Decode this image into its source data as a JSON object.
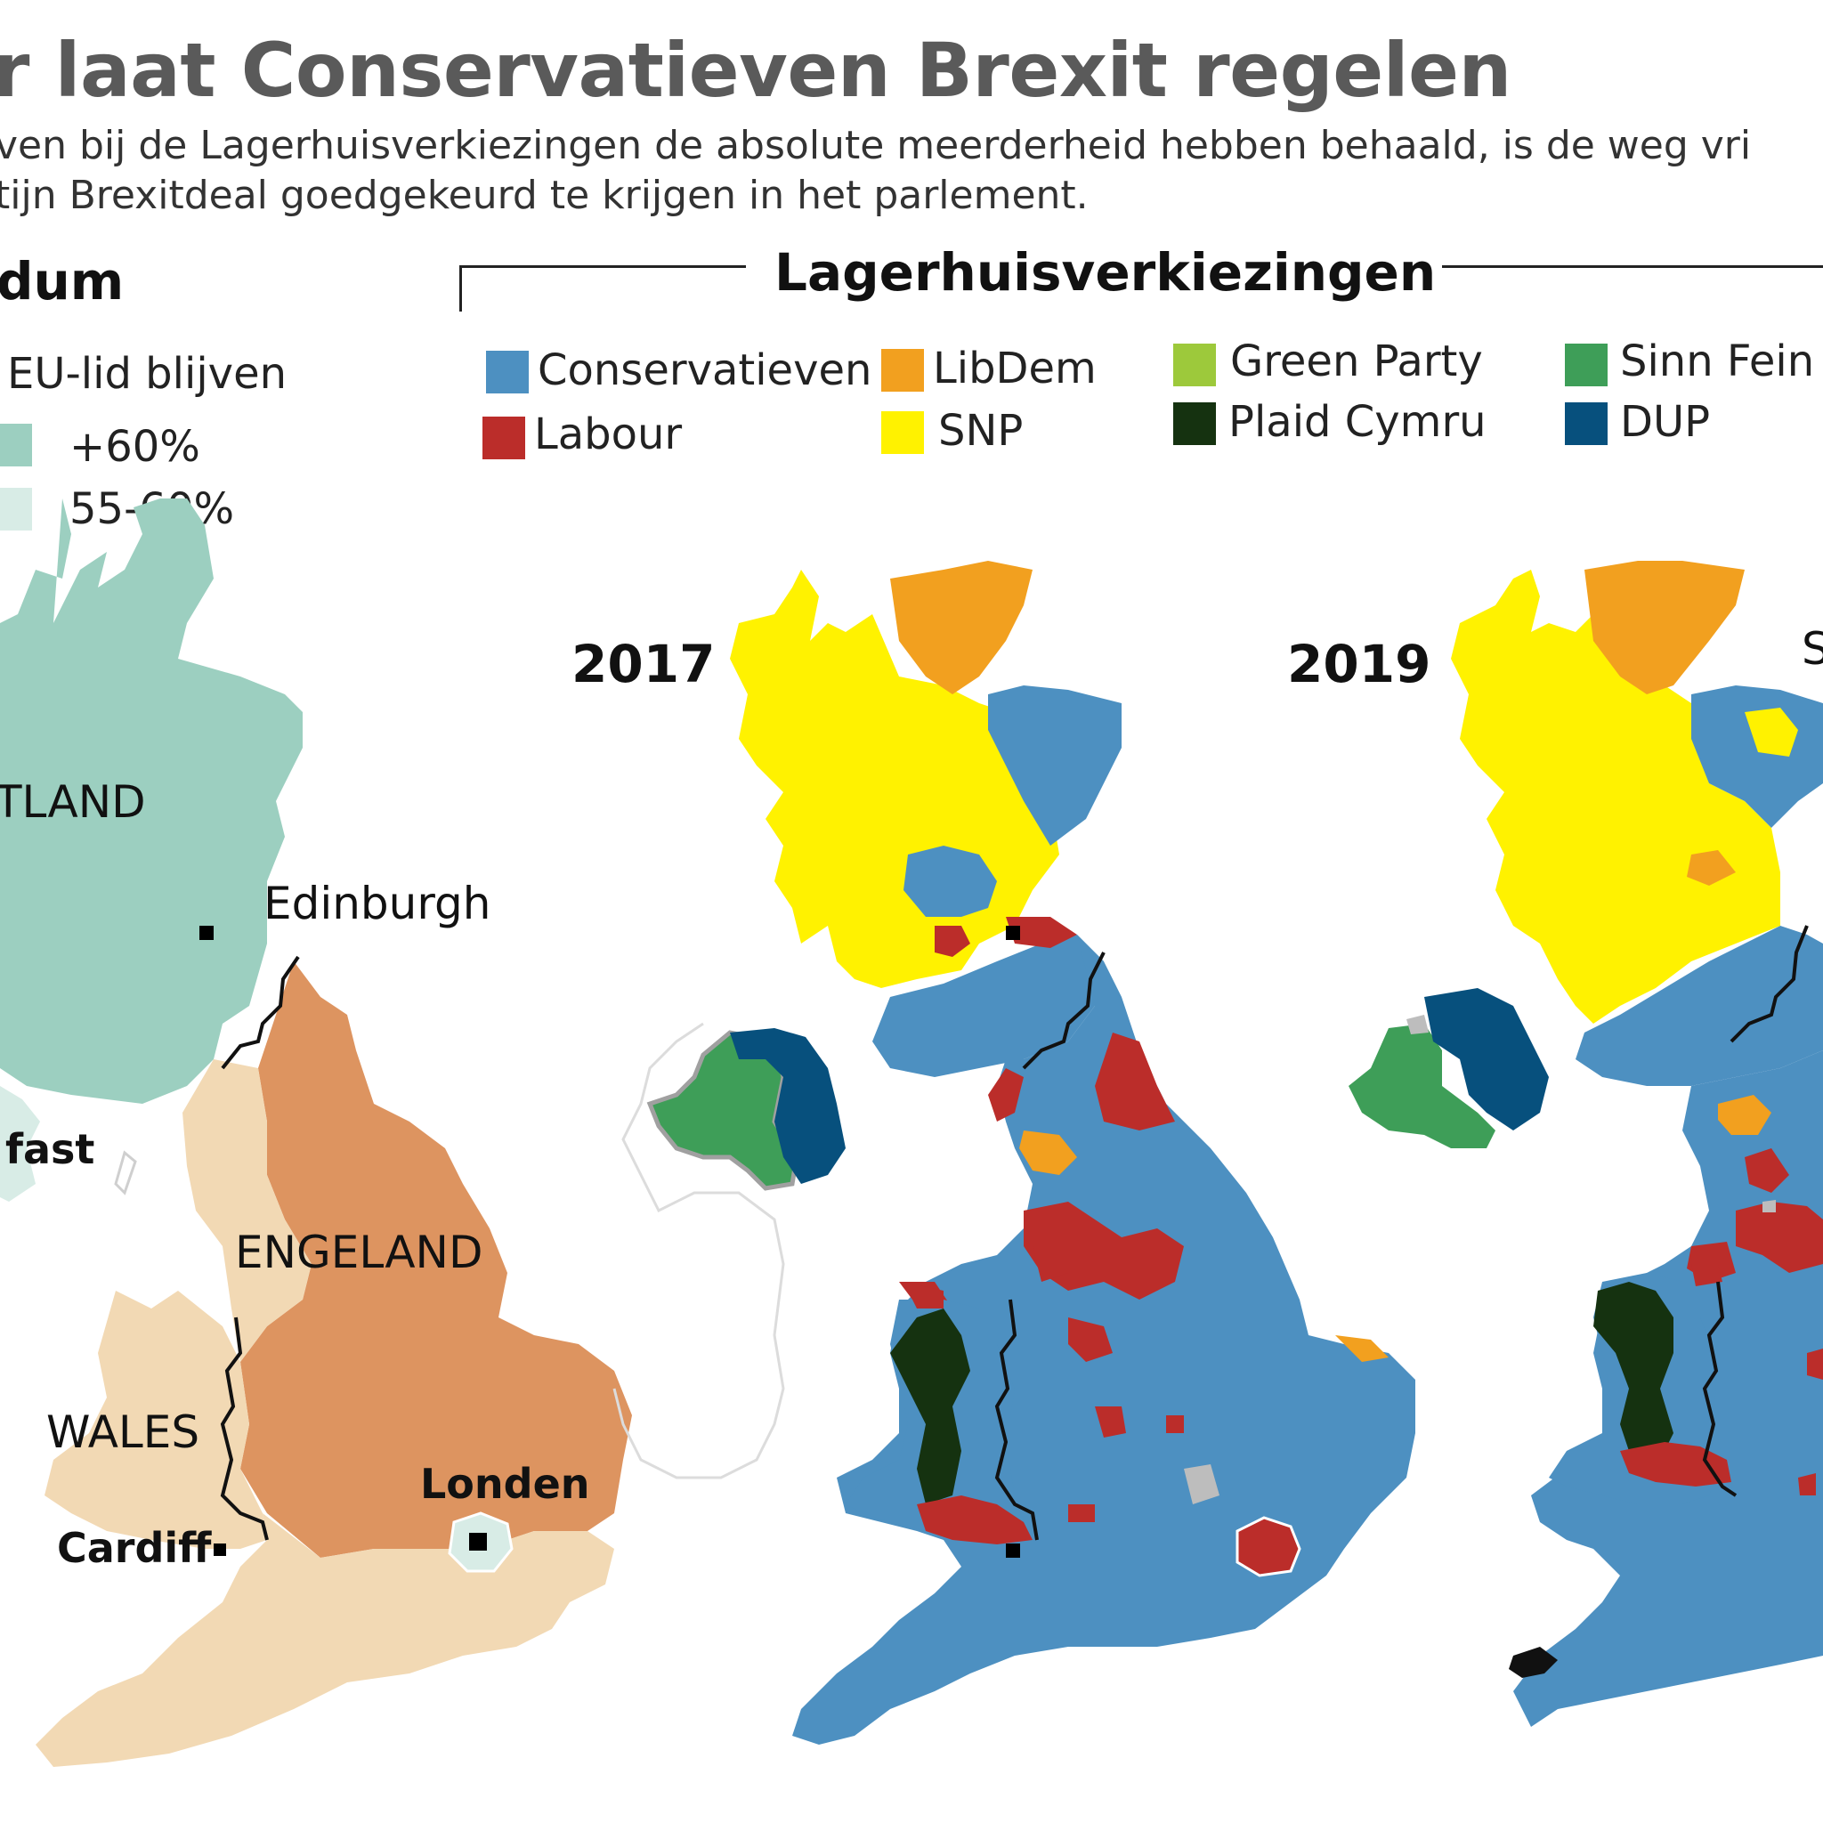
{
  "title": "r laat Conservatieven Brexit regelen",
  "subtitle_line1": "ven bij de Lagerhuisverkiezingen de absolute meerderheid hebben behaald, is de weg vri",
  "subtitle_line2": "tijn Brexitdeal goedgekeurd te krijgen in het parlement.",
  "referendum": {
    "heading": "dum",
    "legend_title": "EU-lid blijven",
    "legend": [
      {
        "label": "+60%",
        "color": "#9ccfc0"
      },
      {
        "label": "55-60%",
        "color": "#d8ece6"
      }
    ],
    "leave_colors": {
      "strong": "#dd9460",
      "light": "#f2d9b4"
    },
    "labels": {
      "scotland": "TLAND",
      "edinburgh": "Edinburgh",
      "belfast": "fast",
      "england": "ENGELAND",
      "wales": "WALES",
      "london": "Londen",
      "cardiff": "Cardiff"
    }
  },
  "elections": {
    "heading": "Lagerhuisverkiezingen",
    "legend": [
      {
        "label": "Conservatieven",
        "color": "#4d90c1"
      },
      {
        "label": "Labour",
        "color": "#bb2d2a"
      },
      {
        "label": "LibDem",
        "color": "#f2a01f"
      },
      {
        "label": "SNP",
        "color": "#fff200"
      },
      {
        "label": "Green Party",
        "color": "#9dc93b"
      },
      {
        "label": "Plaid Cymru",
        "color": "#153210"
      },
      {
        "label": "Sinn Fein",
        "color": "#3e9e58"
      },
      {
        "label": "DUP",
        "color": "#07507d"
      }
    ],
    "year_2017": "2017",
    "year_2019": "2019",
    "edge_label": "S"
  }
}
